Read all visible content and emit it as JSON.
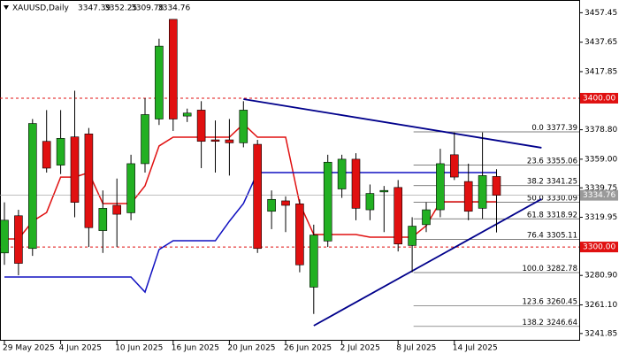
{
  "chart_data": {
    "type": "candlestick",
    "symbol": "XAUUSD,Daily",
    "categories": [
      "29 May 2025",
      null,
      null,
      null,
      "4 Jun 2025",
      null,
      null,
      null,
      "10 Jun 2025",
      null,
      null,
      null,
      "16 Jun 2025",
      null,
      null,
      null,
      "20 Jun 2025",
      null,
      null,
      null,
      "26 Jun 2025",
      null,
      null,
      null,
      "2 Jul 2025",
      null,
      null,
      null,
      "8 Jul 2025",
      null,
      null,
      null,
      "14 Jul 2025",
      null,
      null,
      null
    ],
    "open": [
      3296,
      3321,
      3299,
      3371,
      3355,
      3374,
      3376,
      3311,
      3328,
      3323,
      3356,
      3386,
      3453,
      3388,
      3392,
      3372,
      3372,
      3370,
      3369,
      3324,
      3331,
      3329,
      3273,
      3304,
      3339,
      3359,
      3325,
      3337,
      3340,
      3301,
      3315,
      3325,
      3362,
      3344,
      3326,
      3347.39
    ],
    "high": [
      3330,
      3325,
      3386,
      3392,
      3392,
      3405,
      3380,
      3338,
      3346,
      3362,
      3400,
      3440,
      3453,
      3393,
      3398,
      3385,
      3386,
      3398,
      3372,
      3338,
      3334,
      3332,
      3315,
      3362,
      3362,
      3363,
      3342,
      3341,
      3345,
      3320,
      3330,
      3366,
      3377,
      3356,
      3377,
      3352.25
    ],
    "low": [
      3288,
      3281,
      3294,
      3350,
      3349,
      3320,
      3300,
      3296,
      3300,
      3318,
      3350,
      3382,
      3378,
      3384,
      3353,
      3350,
      3348,
      3367,
      3296,
      3312,
      3310,
      3283,
      3255,
      3300,
      3333,
      3318,
      3318,
      3310,
      3297,
      3283,
      3310,
      3320,
      3345,
      3318,
      3319,
      3309.78
    ],
    "close": [
      3318,
      3289,
      3383,
      3353,
      3373,
      3330,
      3313,
      3326,
      3322,
      3356,
      3389,
      3435,
      3386,
      3390,
      3371,
      3371,
      3370,
      3392,
      3299,
      3332,
      3328,
      3288,
      3308,
      3357,
      3359,
      3326,
      3336,
      3338,
      3302,
      3314,
      3325,
      3356,
      3347,
      3324,
      3348,
      3334.76
    ],
    "up_color": "#22b022",
    "down_color": "#e01010",
    "lines": [
      {
        "color": "#e01010",
        "values": [
          3305.4,
          3305.4,
          3317.3,
          3323.2,
          3347,
          3347,
          3350,
          3329.2,
          3329.2,
          3329.2,
          3341.1,
          3367.9,
          3373.8,
          3373.8,
          3373.8,
          3373.8,
          3373.8,
          3382.7,
          3373.8,
          3373.8,
          3373.8,
          3329.2,
          3308.4,
          3308.4,
          3308.4,
          3308.4,
          3306.6,
          3306.6,
          3306.6,
          3306.6,
          3314.3,
          3330.4,
          3330.4,
          3330.4,
          3330.4,
          3330.4
        ]
      },
      {
        "color": "#1010c0",
        "values": [
          3279.8,
          3279.8,
          3279.8,
          3279.8,
          3279.8,
          3279.8,
          3279.8,
          3279.8,
          3279.8,
          3279.8,
          3269.7,
          3298.3,
          3304.2,
          3304.2,
          3304.2,
          3304.2,
          3317.3,
          3329.2,
          3350,
          3350,
          3350,
          3350,
          3350,
          3350,
          3350,
          3350,
          3350,
          3350,
          3350,
          3350,
          3350,
          3350,
          3350,
          3350,
          3350,
          3350
        ]
      }
    ],
    "trendlines": [
      {
        "color": "#00008b",
        "x": [
          17,
          38.2
        ],
        "y": [
          3399.4,
          3366.7
        ]
      },
      {
        "color": "#00008b",
        "x": [
          22,
          38.2
        ],
        "y": [
          3247.1,
          3332.2
        ]
      }
    ],
    "levels": [
      {
        "value": 3400,
        "label": "3400.00",
        "color": "#e01010"
      },
      {
        "value": 3300,
        "label": "3300.00",
        "color": "#e01010"
      }
    ],
    "fibonacci": {
      "start": 29.1,
      "color": "#555555",
      "levels": [
        {
          "ratio": "0.0",
          "price": 3377.39
        },
        {
          "ratio": "23.6",
          "price": 3355.06
        },
        {
          "ratio": "38.2",
          "price": 3341.25
        },
        {
          "ratio": "50.0",
          "price": 3330.09
        },
        {
          "ratio": "61.8",
          "price": 3318.92
        },
        {
          "ratio": "76.4",
          "price": 3305.11
        },
        {
          "ratio": "100.0",
          "price": 3282.78
        },
        {
          "ratio": "123.6",
          "price": 3260.45
        },
        {
          "ratio": "138.2",
          "price": 3246.64
        }
      ]
    },
    "ylim": [
      3237,
      3466
    ],
    "yticks": [
      3457.45,
      3437.65,
      3417.85,
      {
        "value": 3378.8,
        "label": "3378.80"
      },
      {
        "value": 3359,
        "label": "3359.00"
      },
      3339.75,
      3319.95,
      {
        "value": 3280.9,
        "label": "3280.90"
      },
      {
        "value": 3261.1,
        "label": "3261.10"
      },
      3241.85
    ]
  }
}
